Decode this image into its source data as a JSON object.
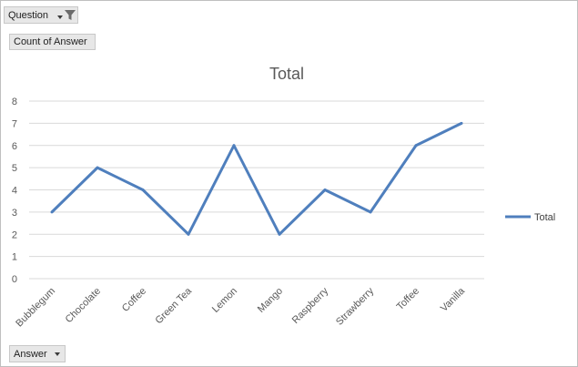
{
  "pivot": {
    "filter_field": "Question",
    "value_field": "Count of Answer",
    "axis_field": "Answer",
    "icons": [
      "dropdown-arrow-icon",
      "filter-funnel-icon"
    ]
  },
  "colors": {
    "series": "#4f7fbd",
    "grid": "#d9d9d9",
    "text": "#595959"
  },
  "chart_data": {
    "type": "line",
    "title": "Total",
    "categories": [
      "Bubblegum",
      "Chocolate",
      "Coffee",
      "Green Tea",
      "Lemon",
      "Mango",
      "Raspberry",
      "Strawberry",
      "Toffee",
      "Vanilla"
    ],
    "series": [
      {
        "name": "Total",
        "values": [
          3,
          5,
          4,
          2,
          6,
          2,
          4,
          3,
          6,
          7
        ]
      }
    ],
    "ylim": [
      0,
      8
    ],
    "yticks": [
      0,
      1,
      2,
      3,
      4,
      5,
      6,
      7,
      8
    ],
    "grid": true,
    "legend": "right"
  }
}
